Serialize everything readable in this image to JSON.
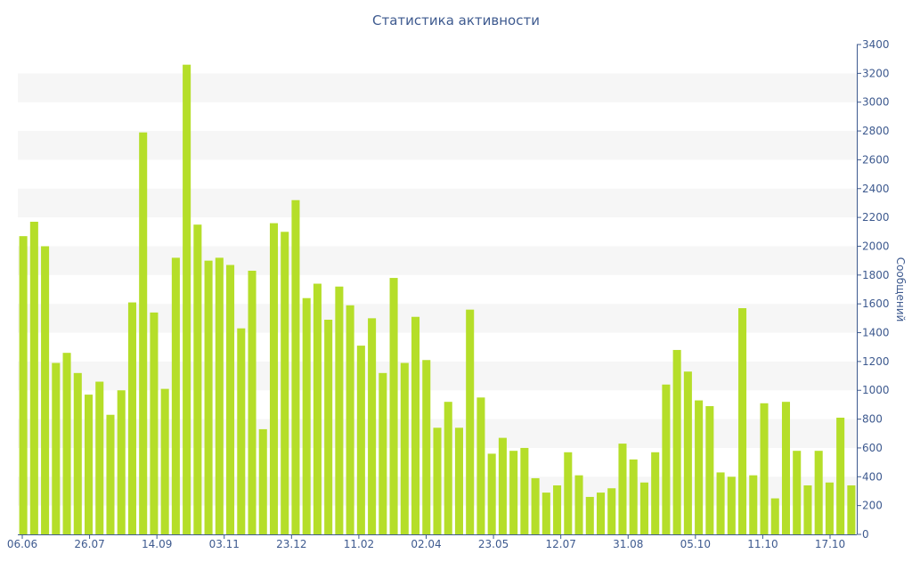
{
  "chart_data": {
    "type": "bar",
    "title": "Статистика активности",
    "xlabel": "",
    "ylabel": "Сообщений",
    "ylim": [
      0,
      3400
    ],
    "yticks": [
      0,
      200,
      400,
      600,
      800,
      1000,
      1200,
      1400,
      1600,
      1800,
      2000,
      2200,
      2400,
      2600,
      2800,
      3000,
      3200,
      3400
    ],
    "xtick_labels": [
      "06.06",
      "26.07",
      "14.09",
      "03.11",
      "23.12",
      "11.02",
      "02.04",
      "23.05",
      "12.07",
      "31.08",
      "05.10",
      "11.10",
      "17.10"
    ],
    "y_axis_position": "right",
    "grid": "alternating horizontal bands",
    "bar_color": "#b5de29",
    "values": [
      2070,
      2170,
      2000,
      1190,
      1260,
      1120,
      970,
      1060,
      830,
      1000,
      1610,
      2790,
      1540,
      1010,
      1920,
      3260,
      2150,
      1900,
      1920,
      1870,
      1430,
      1830,
      730,
      2160,
      2100,
      2320,
      1640,
      1740,
      1490,
      1720,
      1590,
      1310,
      1500,
      1120,
      1780,
      1190,
      1510,
      1210,
      740,
      920,
      740,
      1560,
      950,
      560,
      670,
      580,
      600,
      390,
      290,
      340,
      570,
      410,
      260,
      290,
      320,
      630,
      520,
      360,
      570,
      1040,
      1280,
      1130,
      930,
      890,
      430,
      400,
      1570,
      410,
      910,
      250,
      920,
      580,
      340,
      580,
      360,
      810,
      340
    ]
  }
}
